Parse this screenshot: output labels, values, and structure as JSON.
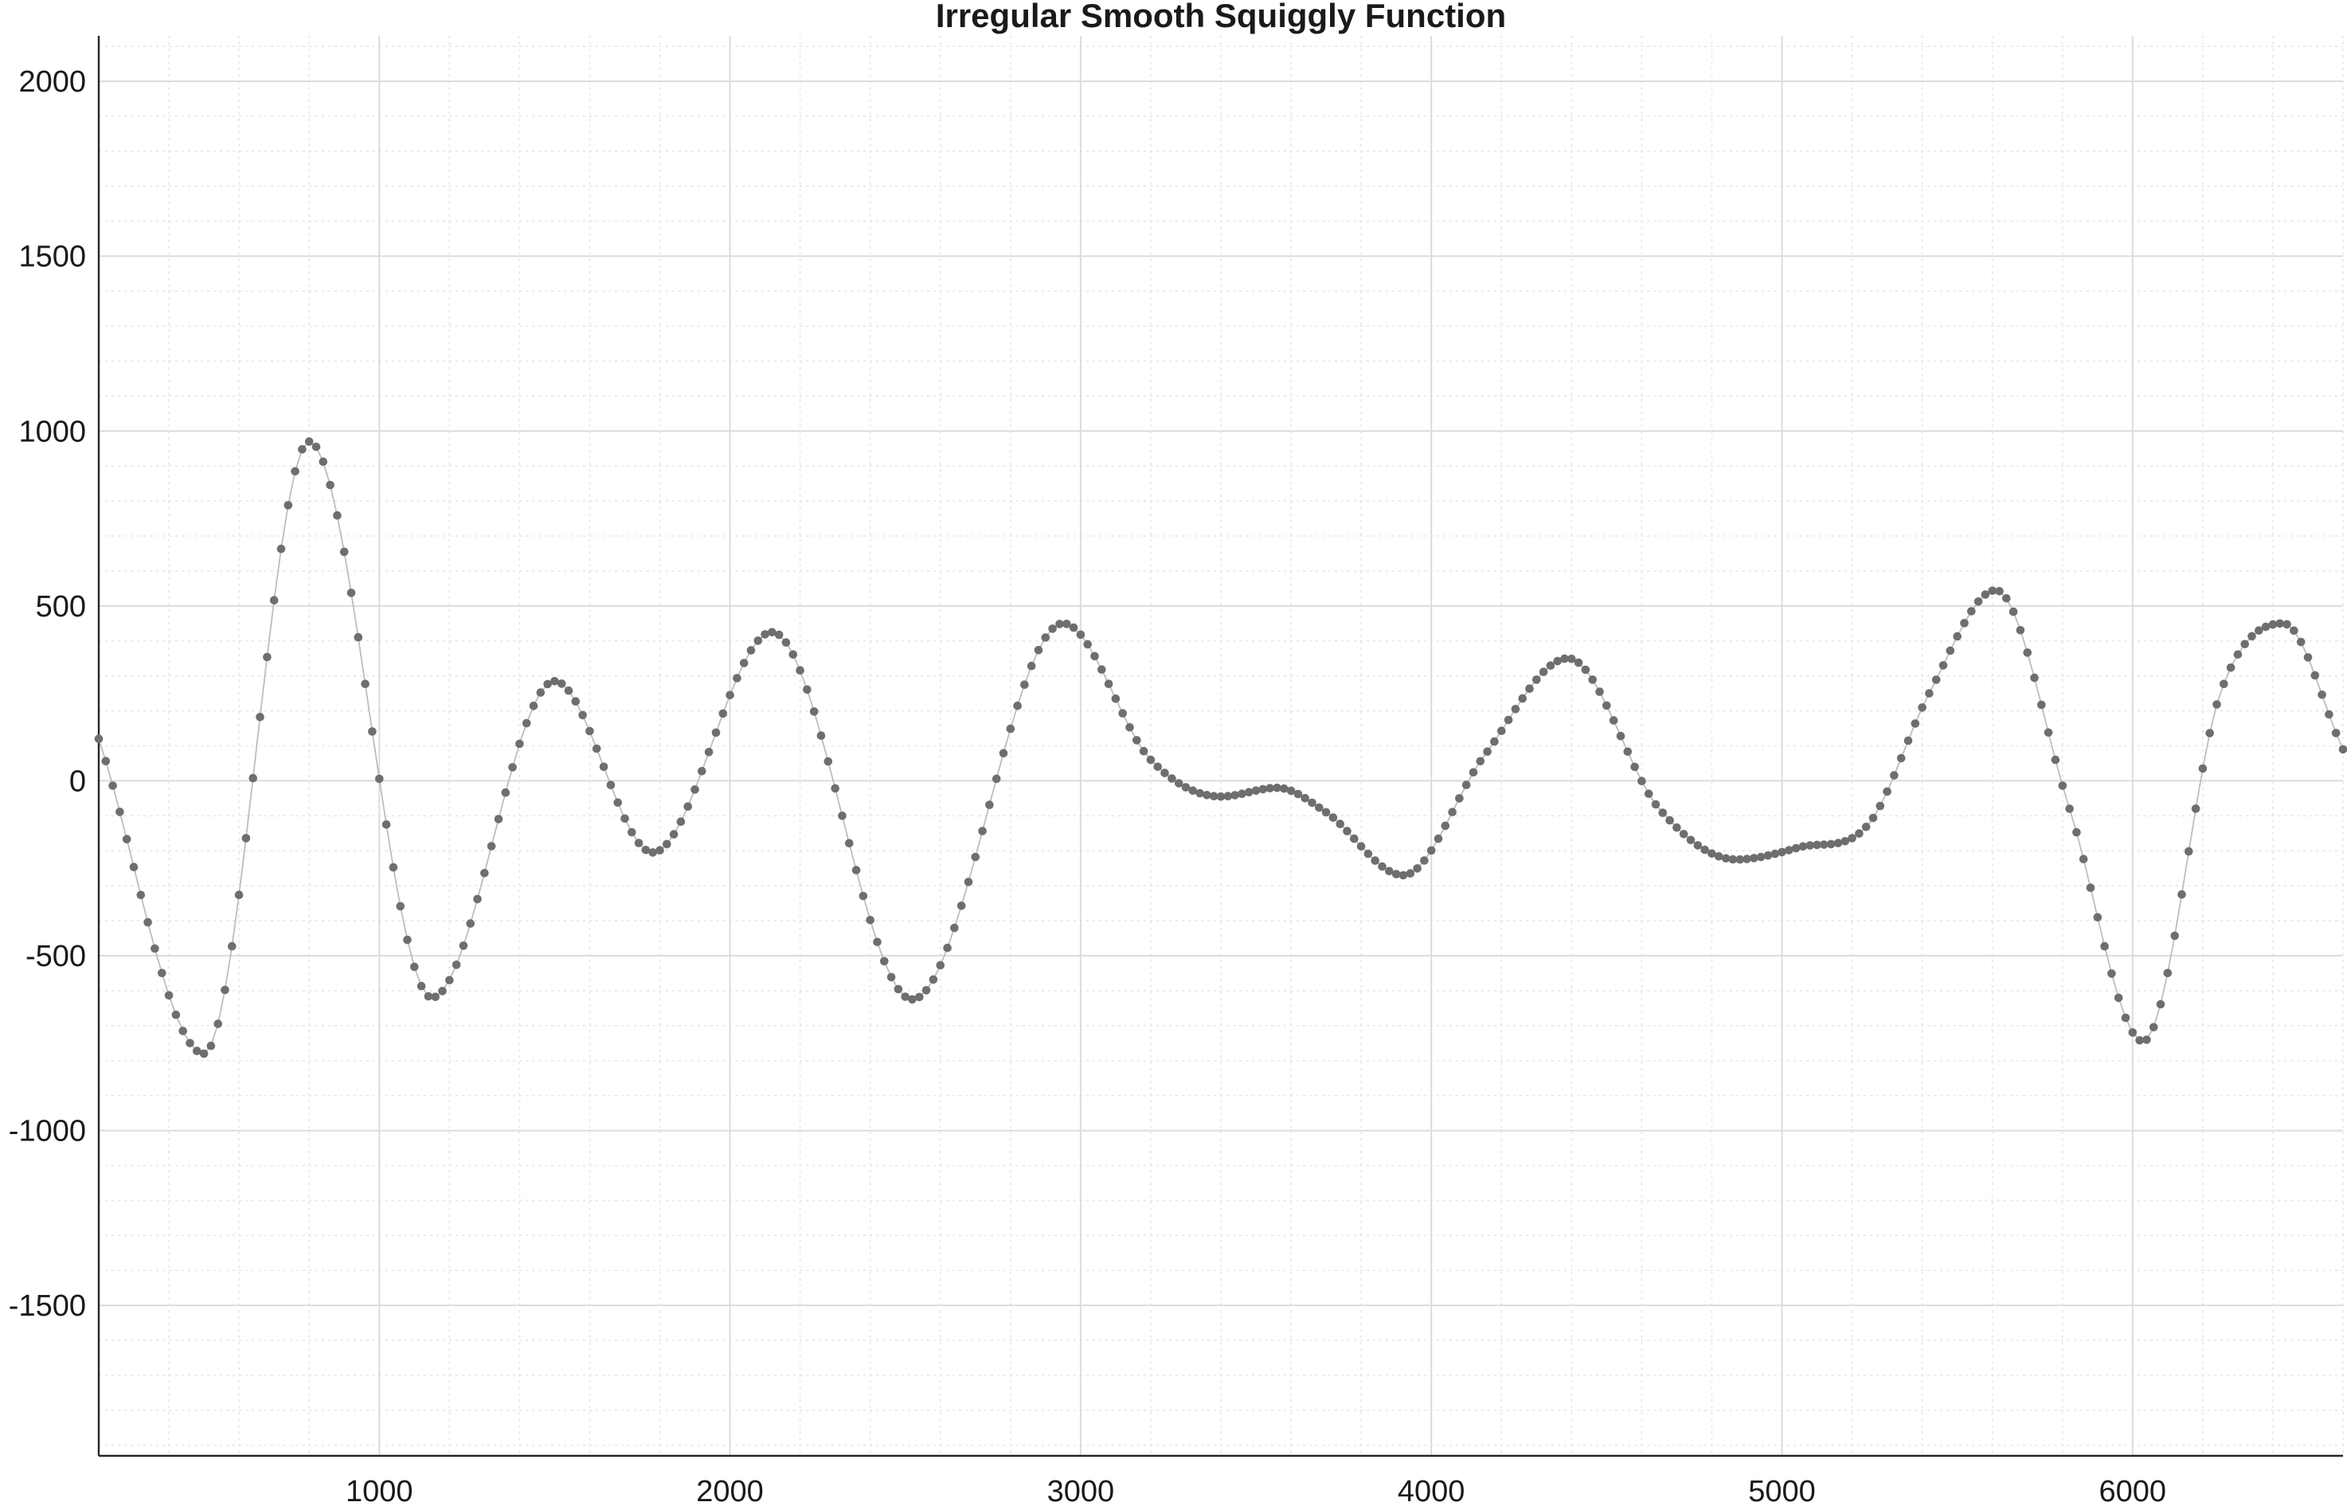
{
  "chart_data": {
    "type": "scatter",
    "title": "Irregular Smooth Squiggly Function",
    "xlabel": "",
    "ylabel": "",
    "xlim": [
      200,
      6600
    ],
    "ylim": [
      -1930,
      2130
    ],
    "xticks": [
      1000,
      2000,
      3000,
      4000,
      5000,
      6000
    ],
    "xtick_labels": [
      "1000",
      "2000",
      "3000",
      "4000",
      "5000",
      "6000"
    ],
    "yticks": [
      -1500,
      -1000,
      -500,
      0,
      500,
      1000,
      1500,
      2000
    ],
    "ytick_labels": [
      "-1500",
      "-1000",
      "-500",
      "0",
      "500",
      "1000",
      "1500",
      "2000"
    ],
    "grid": true,
    "minor_grid": true,
    "legend": "none",
    "marker_color": "#6e6e6e",
    "line_color": "#bdbdbd",
    "series": [
      {
        "x": [
          200,
          500,
          800,
          1150,
          1500,
          1780,
          2120,
          2520,
          2950,
          3200,
          3400,
          3560,
          3700,
          3920,
          4150,
          4390,
          4650,
          4870,
          5050,
          5250,
          5420,
          5610,
          5820,
          6030,
          6250,
          6430,
          6600
        ],
        "y": [
          120,
          -780,
          970,
          -620,
          285,
          -205,
          425,
          -625,
          450,
          60,
          -45,
          -20,
          -90,
          -270,
          70,
          350,
          -80,
          -225,
          -190,
          -120,
          250,
          545,
          -80,
          -745,
          250,
          450,
          90
        ]
      }
    ]
  }
}
